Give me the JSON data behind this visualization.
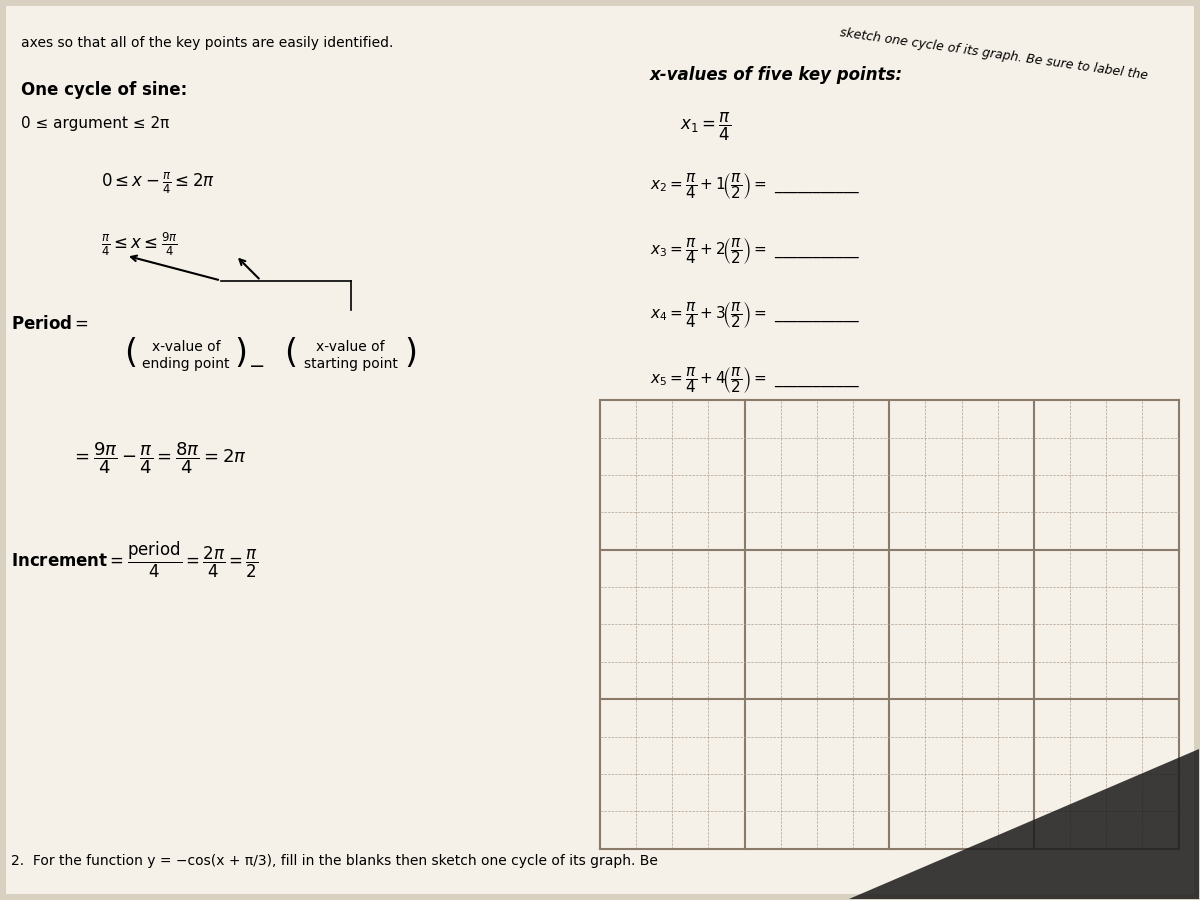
{
  "bg_color": "#d8d0c0",
  "paper_color": "#f5f0e8",
  "title_top": "axes so that all of the key points are easily identified.",
  "title_top_right": "sketch one cycle of its graph. Be sure to label the",
  "section_title": "One cycle of sine:",
  "sine_arg": "0 ≤ argument ≤ 2π",
  "step1": "0 ≤ x − π/4 ≤ 2π",
  "step2": "π/4 ≤ x ≤ 9π/4",
  "period_label": "Period =",
  "period_end_label": "x-value of\nending point",
  "period_start_label": "x-value of\nstarting point",
  "period_calc": "= 9π/4 − π/4 = 8π/4 = 2π",
  "increment_label": "Increment =",
  "increment_calc": "period/4 = 2π/4 = π/2",
  "xvals_title": "x-values of five key points:",
  "x1": "x₁ = π/4",
  "x2_lhs": "x₂ = π/4 + 1(π/2) =",
  "x3_lhs": "x₃ = π/4 + 2(π/2) =",
  "x4_lhs": "x₄ = π/4 + 3(π/2) =",
  "x5_lhs": "x₅ = π/4 + 4(π/2) =",
  "bottom_text": "2.  For the function y = −cos(x + π/3), fill in the blanks then sketch one cycle of its graph. Be",
  "grid_color": "#b0a090",
  "grid_rows": 12,
  "grid_cols": 16
}
